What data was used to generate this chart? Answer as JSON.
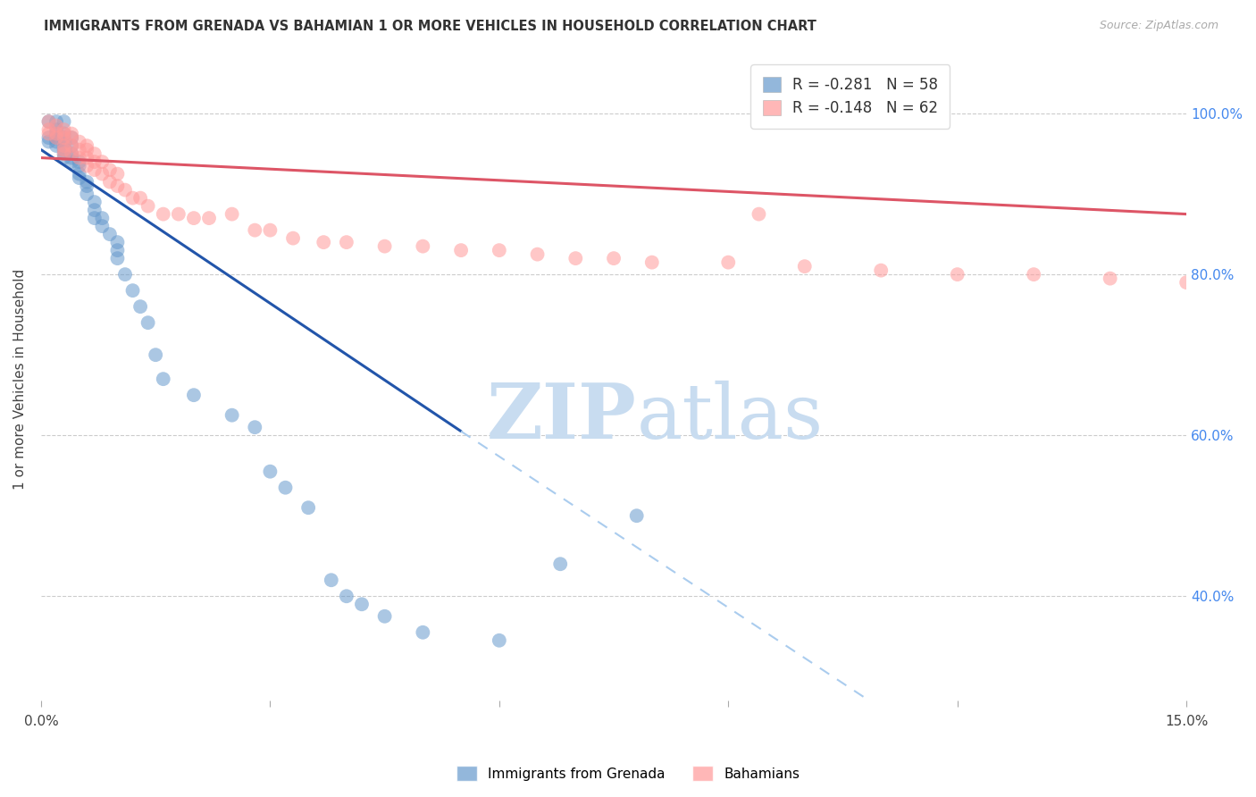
{
  "title": "IMMIGRANTS FROM GRENADA VS BAHAMIAN 1 OR MORE VEHICLES IN HOUSEHOLD CORRELATION CHART",
  "source": "Source: ZipAtlas.com",
  "ylabel": "1 or more Vehicles in Household",
  "ytick_labels": [
    "100.0%",
    "80.0%",
    "60.0%",
    "40.0%"
  ],
  "ytick_values": [
    1.0,
    0.8,
    0.6,
    0.4
  ],
  "xlim": [
    0.0,
    0.15
  ],
  "ylim": [
    0.27,
    1.07
  ],
  "legend_blue_r": "-0.281",
  "legend_blue_n": "58",
  "legend_pink_r": "-0.148",
  "legend_pink_n": "62",
  "blue_color": "#6699CC",
  "pink_color": "#FF9999",
  "blue_line_color": "#2255AA",
  "pink_line_color": "#DD5566",
  "dashed_line_color": "#AACCEE",
  "watermark_color": "#C8DCF0",
  "blue_line_solid": [
    [
      0.0,
      0.955
    ],
    [
      0.055,
      0.605
    ]
  ],
  "blue_line_dash": [
    [
      0.055,
      0.605
    ],
    [
      0.15,
      0.01
    ]
  ],
  "pink_line": [
    [
      0.0,
      0.945
    ],
    [
      0.15,
      0.875
    ]
  ],
  "blue_scatter_x": [
    0.001,
    0.001,
    0.001,
    0.002,
    0.002,
    0.002,
    0.002,
    0.002,
    0.002,
    0.003,
    0.003,
    0.003,
    0.003,
    0.003,
    0.003,
    0.003,
    0.003,
    0.004,
    0.004,
    0.004,
    0.004,
    0.004,
    0.005,
    0.005,
    0.005,
    0.005,
    0.006,
    0.006,
    0.006,
    0.007,
    0.007,
    0.007,
    0.008,
    0.008,
    0.009,
    0.01,
    0.01,
    0.01,
    0.011,
    0.012,
    0.013,
    0.014,
    0.015,
    0.016,
    0.02,
    0.025,
    0.028,
    0.03,
    0.032,
    0.035,
    0.038,
    0.04,
    0.042,
    0.045,
    0.05,
    0.06,
    0.068,
    0.078
  ],
  "blue_scatter_y": [
    0.99,
    0.97,
    0.965,
    0.99,
    0.97,
    0.975,
    0.98,
    0.965,
    0.96,
    0.99,
    0.975,
    0.97,
    0.965,
    0.96,
    0.955,
    0.95,
    0.945,
    0.97,
    0.96,
    0.95,
    0.945,
    0.94,
    0.94,
    0.935,
    0.925,
    0.92,
    0.915,
    0.91,
    0.9,
    0.89,
    0.88,
    0.87,
    0.87,
    0.86,
    0.85,
    0.84,
    0.83,
    0.82,
    0.8,
    0.78,
    0.76,
    0.74,
    0.7,
    0.67,
    0.65,
    0.625,
    0.61,
    0.555,
    0.535,
    0.51,
    0.42,
    0.4,
    0.39,
    0.375,
    0.355,
    0.345,
    0.44,
    0.5
  ],
  "pink_scatter_x": [
    0.001,
    0.001,
    0.001,
    0.002,
    0.002,
    0.002,
    0.003,
    0.003,
    0.003,
    0.003,
    0.003,
    0.003,
    0.004,
    0.004,
    0.004,
    0.004,
    0.005,
    0.005,
    0.005,
    0.006,
    0.006,
    0.006,
    0.006,
    0.007,
    0.007,
    0.007,
    0.008,
    0.008,
    0.009,
    0.009,
    0.01,
    0.01,
    0.011,
    0.012,
    0.013,
    0.014,
    0.016,
    0.018,
    0.02,
    0.022,
    0.025,
    0.028,
    0.03,
    0.033,
    0.037,
    0.04,
    0.045,
    0.05,
    0.055,
    0.06,
    0.065,
    0.07,
    0.075,
    0.08,
    0.09,
    0.1,
    0.11,
    0.12,
    0.13,
    0.14,
    0.15,
    0.094
  ],
  "pink_scatter_y": [
    0.99,
    0.98,
    0.975,
    0.985,
    0.975,
    0.97,
    0.98,
    0.975,
    0.97,
    0.96,
    0.955,
    0.95,
    0.975,
    0.97,
    0.96,
    0.95,
    0.965,
    0.955,
    0.945,
    0.96,
    0.955,
    0.945,
    0.935,
    0.95,
    0.94,
    0.93,
    0.94,
    0.925,
    0.93,
    0.915,
    0.925,
    0.91,
    0.905,
    0.895,
    0.895,
    0.885,
    0.875,
    0.875,
    0.87,
    0.87,
    0.875,
    0.855,
    0.855,
    0.845,
    0.84,
    0.84,
    0.835,
    0.835,
    0.83,
    0.83,
    0.825,
    0.82,
    0.82,
    0.815,
    0.815,
    0.81,
    0.805,
    0.8,
    0.8,
    0.795,
    0.79,
    0.875
  ]
}
